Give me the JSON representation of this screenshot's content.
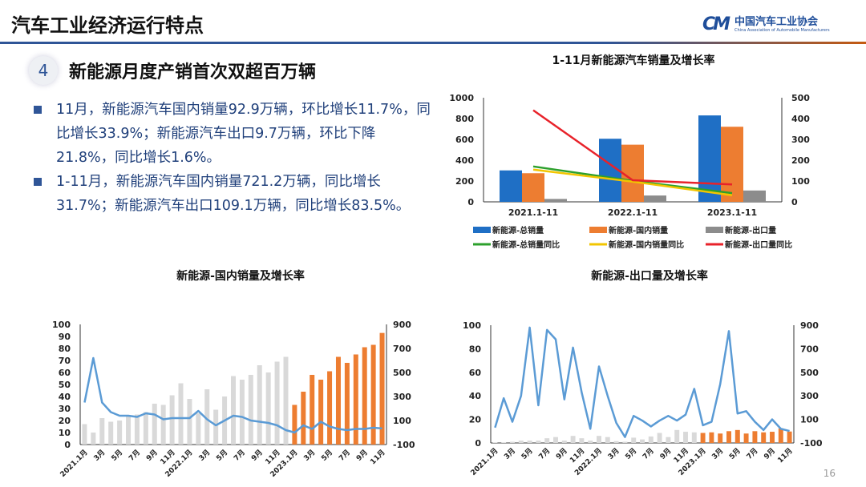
{
  "header": {
    "title": "汽车工业经济运行特点",
    "logo_cn": "中国汽车工业协会",
    "logo_en": "China Association of Automobile Manufacturers",
    "logo_mark": "CAAM"
  },
  "section": {
    "number": "4",
    "title": "新能源月度产销首次双超百万辆"
  },
  "bullets": [
    "11月，新能源汽车国内销量92.9万辆，环比增长11.7%，同比增长33.9%；新能源汽车出口9.7万辆，环比下降21.8%，同比增长1.6%。",
    "1-11月，新能源汽车国内销量721.2万辆，同比增长31.7%；新能源汽车出口109.1万辆，同比增长83.5%。"
  ],
  "page_number": "16",
  "colors": {
    "blue": "#1f6fc5",
    "orange": "#ed7d31",
    "gray": "#8c8c8c",
    "green": "#2ca02c",
    "yellow": "#f2c500",
    "red": "#e8222a",
    "line_blue": "#5b9bd5",
    "light_gray": "#d9d9d9"
  },
  "chart_data": [
    {
      "type": "bar",
      "title": "1-11月新能源汽车销量及增长率",
      "categories": [
        "2021.1-11",
        "2022.1-11",
        "2023.1-11"
      ],
      "ylim": [
        0,
        1000
      ],
      "yticks": [
        "0",
        "200",
        "400",
        "600",
        "800",
        "1000"
      ],
      "y2lim": [
        0,
        500
      ],
      "y2ticks": [
        "0",
        "100",
        "200",
        "300",
        "400",
        "500"
      ],
      "legend_position": "bottom",
      "series": [
        {
          "name": "新能源-总销量",
          "kind": "bar",
          "axis": "left",
          "color": "#1f6fc5",
          "values": [
            302,
            606,
            830
          ]
        },
        {
          "name": "新能源-国内销量",
          "kind": "bar",
          "axis": "left",
          "color": "#ed7d31",
          "values": [
            275,
            549,
            721.2
          ]
        },
        {
          "name": "新能源-出口量",
          "kind": "bar",
          "axis": "left",
          "color": "#8c8c8c",
          "values": [
            28,
            61,
            109.1
          ]
        },
        {
          "name": "新能源-总销量同比",
          "kind": "line",
          "axis": "right",
          "color": "#2ca02c",
          "values": [
            170,
            101,
            42
          ]
        },
        {
          "name": "新能源-国内销量同比",
          "kind": "line",
          "axis": "right",
          "color": "#f2c500",
          "values": [
            155,
            97,
            31.7
          ]
        },
        {
          "name": "新能源-出口量同比",
          "kind": "line",
          "axis": "right",
          "color": "#e8222a",
          "values": [
            440,
            104,
            83.5
          ]
        }
      ]
    },
    {
      "type": "bar",
      "title": "新能源-国内销量及增长率",
      "x_labels": [
        "2021.1月",
        "3月",
        "5月",
        "7月",
        "9月",
        "11月",
        "2022.1月",
        "3月",
        "5月",
        "7月",
        "9月",
        "11月",
        "2023.1月",
        "3月",
        "5月",
        "7月",
        "9月",
        "11月"
      ],
      "ylim": [
        0,
        100
      ],
      "yticks": [
        "0",
        "10",
        "20",
        "30",
        "40",
        "50",
        "60",
        "70",
        "80",
        "90",
        "100"
      ],
      "y2lim": [
        -100,
        900
      ],
      "y2ticks": [
        "-100",
        "100",
        "300",
        "500",
        "700",
        "900"
      ],
      "bars": [
        17,
        10,
        22,
        19,
        20,
        24,
        25,
        27,
        34,
        33,
        41,
        51,
        38,
        26,
        46,
        29,
        40,
        57,
        54,
        58,
        66,
        60,
        69,
        73,
        33,
        44,
        58,
        54,
        61,
        73,
        68,
        75,
        81,
        83,
        92.9
      ],
      "bar_highlight_from": 24,
      "line": [
        250,
        620,
        250,
        170,
        140,
        140,
        130,
        160,
        150,
        110,
        120,
        120,
        120,
        180,
        110,
        60,
        100,
        140,
        130,
        100,
        90,
        80,
        60,
        20,
        0,
        60,
        30,
        90,
        50,
        30,
        20,
        30,
        30,
        40,
        33.9
      ]
    },
    {
      "type": "bar",
      "title": "新能源-出口量及增长率",
      "x_labels": [
        "2021.1月",
        "3月",
        "5月",
        "7月",
        "9月",
        "11月",
        "2022.1月",
        "3月",
        "5月",
        "7月",
        "9月",
        "11月",
        "2023.1月",
        "3月",
        "5月",
        "7月",
        "9月",
        "11月"
      ],
      "ylim": [
        0,
        100
      ],
      "yticks": [
        "0",
        "20",
        "40",
        "60",
        "80",
        "100"
      ],
      "y2lim": [
        -100,
        900
      ],
      "y2ticks": [
        "-100",
        "100",
        "300",
        "500",
        "700",
        "900"
      ],
      "bars": [
        0.3,
        0.5,
        1,
        2,
        2,
        2,
        4,
        5,
        2,
        6,
        4,
        2,
        6,
        5,
        1.5,
        1,
        4.5,
        3,
        5.5,
        8.5,
        5,
        11,
        9.5,
        9,
        8.5,
        9,
        8,
        10,
        11,
        8,
        10,
        9,
        9.5,
        12.4,
        9.7
      ],
      "bar_highlight_from": 24,
      "line": [
        30,
        280,
        80,
        300,
        880,
        220,
        860,
        780,
        270,
        710,
        330,
        20,
        550,
        300,
        70,
        -50,
        130,
        90,
        40,
        90,
        130,
        90,
        140,
        360,
        50,
        80,
        400,
        850,
        150,
        170,
        80,
        10,
        100,
        20,
        1.6
      ]
    }
  ]
}
